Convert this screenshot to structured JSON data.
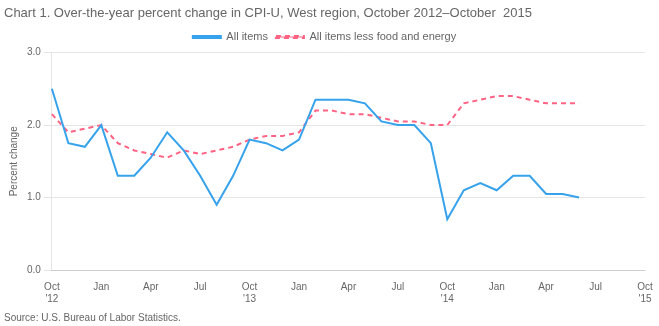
{
  "chart_data": {
    "type": "line",
    "title": "Chart 1. Over-the-year percent change in CPI-U, West region, October 2012–October  2015",
    "ylabel": "Percent change",
    "source": "Source: U.S. Bureau of Labor Statistics.",
    "categories": [
      "Oct\n'12",
      null,
      null,
      "Jan",
      null,
      null,
      "Apr",
      null,
      null,
      "Jul",
      null,
      null,
      "Oct\n'13",
      null,
      null,
      "Jan",
      null,
      null,
      "Apr",
      null,
      null,
      "Jul",
      null,
      null,
      "Oct\n'14",
      null,
      null,
      "Jan",
      null,
      null,
      "Apr",
      null,
      null,
      "Jul",
      null,
      null,
      "Oct\n'15"
    ],
    "series": [
      {
        "name": "All items",
        "line_style": "solid",
        "values": [
          2.5,
          1.75,
          1.7,
          2.0,
          1.3,
          1.3,
          1.55,
          1.9,
          1.65,
          1.3,
          0.9,
          1.3,
          1.8,
          1.75,
          1.65,
          1.8,
          2.35,
          2.35,
          2.35,
          2.3,
          2.05,
          2.0,
          2.0,
          1.75,
          0.7,
          1.1,
          1.2,
          1.1,
          1.3,
          1.3,
          1.05,
          1.05,
          1.0,
          null,
          null,
          null,
          null
        ]
      },
      {
        "name": "All items less food and energy",
        "line_style": "dashed",
        "values": [
          2.15,
          1.9,
          1.95,
          2.0,
          1.75,
          1.65,
          1.6,
          1.55,
          1.65,
          1.6,
          1.65,
          1.7,
          1.8,
          1.85,
          1.85,
          1.9,
          2.2,
          2.2,
          2.15,
          2.15,
          2.1,
          2.05,
          2.05,
          2.0,
          2.0,
          2.3,
          2.35,
          2.4,
          2.4,
          2.35,
          2.3,
          2.3,
          2.3,
          null,
          null,
          null,
          null
        ]
      }
    ],
    "ylim": [
      0.0,
      3.0
    ],
    "yticks": [
      {
        "value": 0,
        "label": "0.0"
      },
      {
        "value": 1,
        "label": "1.0"
      },
      {
        "value": 2,
        "label": "2.0"
      },
      {
        "value": 3,
        "label": "3.0"
      }
    ],
    "grid": true,
    "legend": "top"
  }
}
